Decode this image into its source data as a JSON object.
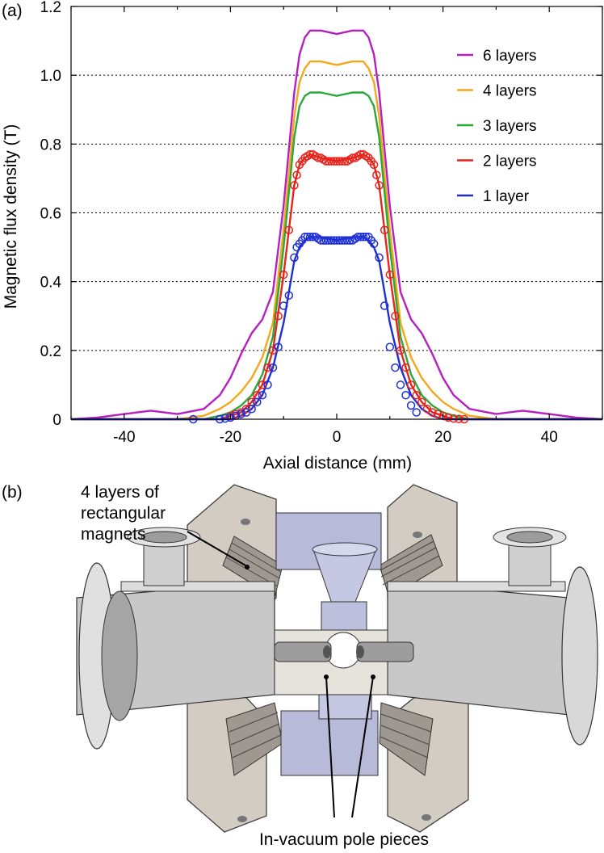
{
  "panel_a_label": "(a)",
  "panel_b_label": "(b)",
  "chart_data": {
    "type": "line",
    "xlabel": "Axial distance (mm)",
    "ylabel": "Magnetic flux density (T)",
    "xlim": [
      -50,
      50
    ],
    "ylim": [
      0,
      1.2
    ],
    "xticks": [
      -40,
      -20,
      0,
      20,
      40
    ],
    "yticks": [
      "0",
      "0.2",
      "0.4",
      "0.6",
      "0.8",
      "1.0",
      "1.2"
    ],
    "grid": "horizontal dotted",
    "legend_position": "top-right",
    "series": [
      {
        "name": "6 layers",
        "color": "#b61fc1",
        "x": [
          -50,
          -45,
          -40,
          -35,
          -30,
          -25,
          -22,
          -20,
          -18,
          -16,
          -14,
          -12,
          -10,
          -8,
          -7,
          -6,
          -5,
          -3,
          0,
          3,
          5,
          6,
          7,
          8,
          10,
          12,
          14,
          16,
          18,
          20,
          22,
          25,
          30,
          35,
          40,
          45,
          50
        ],
        "y": [
          0.0,
          0.005,
          0.015,
          0.025,
          0.015,
          0.03,
          0.07,
          0.12,
          0.19,
          0.25,
          0.29,
          0.37,
          0.62,
          0.95,
          1.06,
          1.11,
          1.13,
          1.13,
          1.12,
          1.13,
          1.13,
          1.11,
          1.06,
          0.95,
          0.62,
          0.37,
          0.29,
          0.25,
          0.19,
          0.12,
          0.07,
          0.03,
          0.015,
          0.025,
          0.015,
          0.005,
          0.0
        ]
      },
      {
        "name": "4 layers",
        "color": "#f3a81b",
        "x": [
          -50,
          -30,
          -25,
          -22,
          -20,
          -18,
          -16,
          -14,
          -12,
          -10,
          -8,
          -7,
          -6,
          -5,
          -3,
          0,
          3,
          5,
          6,
          7,
          8,
          10,
          12,
          14,
          16,
          18,
          20,
          22,
          25,
          30,
          50
        ],
        "y": [
          0.0,
          0.0,
          0.01,
          0.03,
          0.05,
          0.08,
          0.12,
          0.18,
          0.28,
          0.55,
          0.88,
          0.98,
          1.02,
          1.04,
          1.04,
          1.03,
          1.04,
          1.04,
          1.02,
          0.98,
          0.88,
          0.55,
          0.28,
          0.18,
          0.12,
          0.08,
          0.05,
          0.03,
          0.01,
          0.0,
          0.0
        ]
      },
      {
        "name": "3 layers",
        "color": "#2aa83a",
        "x": [
          -50,
          -25,
          -22,
          -20,
          -18,
          -16,
          -14,
          -12,
          -10,
          -8,
          -7,
          -6,
          -5,
          -3,
          0,
          3,
          5,
          6,
          7,
          8,
          10,
          12,
          14,
          16,
          18,
          20,
          22,
          25,
          50
        ],
        "y": [
          0.0,
          0.0,
          0.01,
          0.02,
          0.04,
          0.07,
          0.13,
          0.24,
          0.5,
          0.82,
          0.91,
          0.94,
          0.95,
          0.95,
          0.94,
          0.95,
          0.95,
          0.94,
          0.91,
          0.82,
          0.5,
          0.24,
          0.13,
          0.07,
          0.04,
          0.02,
          0.01,
          0.0,
          0.0
        ]
      },
      {
        "name": "2 layers",
        "color": "#e8231c",
        "x": [
          -50,
          -22,
          -20,
          -18,
          -16,
          -14,
          -12,
          -10,
          -8,
          -7,
          -6,
          -5,
          -3,
          0,
          3,
          5,
          6,
          7,
          8,
          10,
          12,
          14,
          16,
          18,
          20,
          22,
          50
        ],
        "y": [
          0.0,
          0.0,
          0.01,
          0.02,
          0.05,
          0.1,
          0.2,
          0.42,
          0.68,
          0.74,
          0.76,
          0.77,
          0.76,
          0.75,
          0.76,
          0.77,
          0.76,
          0.74,
          0.68,
          0.42,
          0.2,
          0.1,
          0.05,
          0.02,
          0.01,
          0.0,
          0.0
        ],
        "points_x": [
          -20,
          -19,
          -18,
          -17,
          -16,
          -15,
          -14,
          -13,
          -12,
          -11,
          -10,
          -9,
          -8,
          -7.5,
          -7,
          -6.5,
          -6,
          -5.5,
          -5,
          -4.5,
          -4,
          -3.5,
          -3,
          -2.5,
          -2,
          -1.5,
          -1,
          -0.5,
          0,
          0.5,
          1,
          1.5,
          2,
          2.5,
          3,
          3.5,
          4,
          4.5,
          5,
          5.5,
          6,
          6.5,
          7,
          7.5,
          8,
          9,
          10,
          11,
          12,
          13,
          14,
          15,
          16,
          17,
          18,
          19,
          20,
          21,
          22,
          23,
          24
        ],
        "points_y": [
          0.01,
          0.015,
          0.02,
          0.03,
          0.05,
          0.07,
          0.1,
          0.15,
          0.2,
          0.3,
          0.42,
          0.55,
          0.68,
          0.71,
          0.74,
          0.75,
          0.76,
          0.765,
          0.77,
          0.77,
          0.765,
          0.76,
          0.76,
          0.755,
          0.75,
          0.75,
          0.75,
          0.75,
          0.75,
          0.75,
          0.75,
          0.75,
          0.75,
          0.755,
          0.76,
          0.76,
          0.765,
          0.77,
          0.77,
          0.765,
          0.76,
          0.75,
          0.74,
          0.71,
          0.68,
          0.55,
          0.42,
          0.3,
          0.2,
          0.15,
          0.1,
          0.07,
          0.05,
          0.03,
          0.02,
          0.015,
          0.01,
          0.005,
          0.002,
          0.001,
          0.0
        ]
      },
      {
        "name": "1 layer",
        "color": "#1f2fd6",
        "x": [
          -50,
          -20,
          -18,
          -16,
          -14,
          -12,
          -10,
          -8,
          -7,
          -6,
          -5,
          -3,
          0,
          3,
          5,
          6,
          7,
          8,
          10,
          12,
          14,
          16,
          18,
          20,
          50
        ],
        "y": [
          0.0,
          0.0,
          0.01,
          0.03,
          0.07,
          0.15,
          0.28,
          0.46,
          0.5,
          0.52,
          0.53,
          0.53,
          0.52,
          0.53,
          0.53,
          0.52,
          0.5,
          0.46,
          0.28,
          0.15,
          0.07,
          0.03,
          0.01,
          0.0,
          0.0
        ],
        "points_x": [
          -27,
          -22,
          -21,
          -20,
          -19,
          -18,
          -17,
          -16,
          -15,
          -14,
          -13,
          -12,
          -11,
          -10,
          -9,
          -8,
          -7.5,
          -7,
          -6.5,
          -6,
          -5.5,
          -5,
          -4.5,
          -4,
          -3.5,
          -3,
          -2.5,
          -2,
          -1.5,
          -1,
          -0.5,
          0,
          0.5,
          1,
          1.5,
          2,
          2.5,
          3,
          3.5,
          4,
          4.5,
          5,
          5.5,
          6,
          6.5,
          7,
          8,
          9,
          10,
          11,
          12,
          13,
          14,
          15
        ],
        "points_y": [
          0.0,
          0.0,
          0.002,
          0.005,
          0.01,
          0.015,
          0.02,
          0.03,
          0.05,
          0.07,
          0.1,
          0.15,
          0.21,
          0.33,
          0.36,
          0.47,
          0.5,
          0.51,
          0.52,
          0.53,
          0.53,
          0.53,
          0.53,
          0.53,
          0.525,
          0.52,
          0.52,
          0.52,
          0.52,
          0.52,
          0.52,
          0.52,
          0.52,
          0.52,
          0.52,
          0.52,
          0.52,
          0.52,
          0.525,
          0.53,
          0.53,
          0.53,
          0.53,
          0.53,
          0.52,
          0.51,
          0.47,
          0.33,
          0.21,
          0.15,
          0.1,
          0.07,
          0.04,
          0.02
        ]
      }
    ]
  },
  "cad": {
    "annotation_top_line1": "4 layers of",
    "annotation_top_line2": "rectangular",
    "annotation_top_line3": "magnets",
    "annotation_bottom": "In-vacuum pole pieces",
    "colors": {
      "steel": "#c9c9c9",
      "steel_dark": "#8e8e8e",
      "magnet": "#a39d95",
      "vacuum": "#b3b8d8",
      "outline": "#333333"
    }
  }
}
